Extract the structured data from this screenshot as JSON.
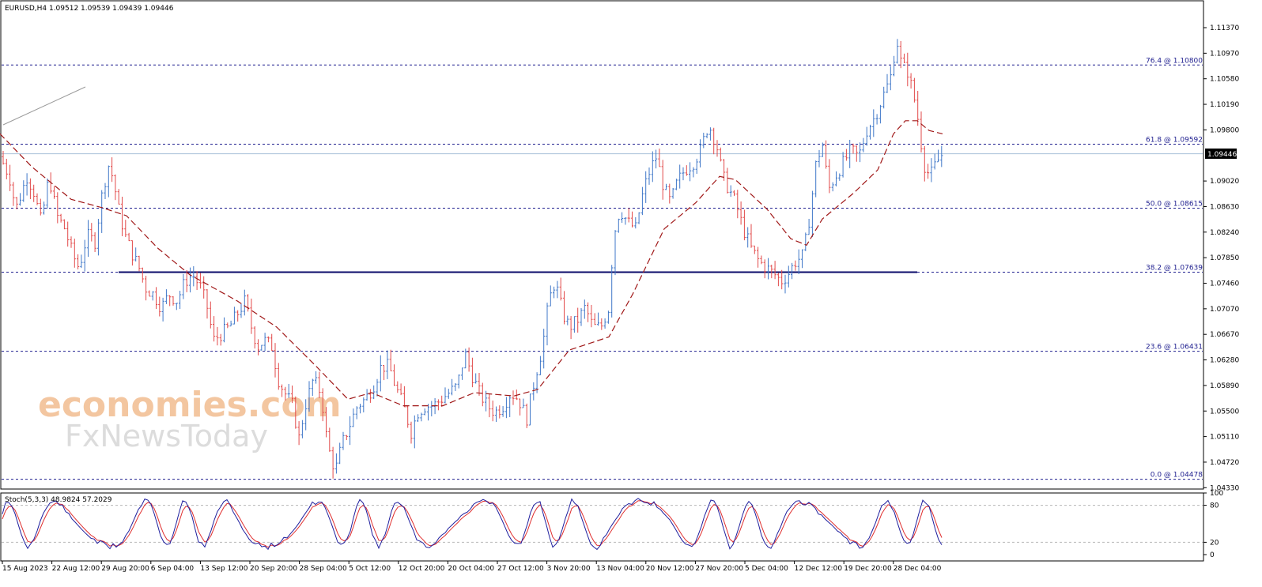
{
  "header": {
    "title": "EURUSD,H4  1.09512 1.09539 1.09439 1.09446"
  },
  "price_label": "1.09446",
  "oscillator": {
    "title": "Stoch(5,3,3) 48.9824 57.2029"
  },
  "watermark": {
    "line1": "economies.com",
    "line2": "FxNewsToday"
  },
  "colors": {
    "bull": "#3f77c8",
    "bear": "#e24a4a",
    "ma": "#a01818",
    "fib": "#1f1f8f",
    "k": "#1f1f9e",
    "d": "#e03030"
  },
  "chart_data": {
    "type": "candlestick",
    "symbol": "EURUSD",
    "timeframe": "H4",
    "y_ticks": [
      "1.11370",
      "1.10970",
      "1.10580",
      "1.10190",
      "1.09800",
      "1.09020",
      "1.08630",
      "1.08240",
      "1.07850",
      "1.07460",
      "1.07070",
      "1.06670",
      "1.06280",
      "1.05890",
      "1.05500",
      "1.05110",
      "1.04720",
      "1.04330"
    ],
    "x_labels": [
      "15 Aug 2023",
      "22 Aug 12:00",
      "29 Aug 20:00",
      "6 Sep 04:00",
      "13 Sep 12:00",
      "20 Sep 20:00",
      "28 Sep 04:00",
      "5 Oct 12:00",
      "12 Oct 20:00",
      "20 Oct 04:00",
      "27 Oct 12:00",
      "3 Nov 20:00",
      "13 Nov 04:00",
      "20 Nov 12:00",
      "27 Nov 20:00",
      "5 Dec 04:00",
      "12 Dec 12:00",
      "19 Dec 20:00",
      "28 Dec 04:00"
    ],
    "ylim": [
      1.0433,
      1.1137
    ],
    "fib_levels": [
      {
        "label": "76.4 @ 1.10800",
        "value": 1.108
      },
      {
        "label": "61.8 @ 1.09592",
        "value": 1.09592
      },
      {
        "label": "50.0 @ 1.08615",
        "value": 1.08615
      },
      {
        "label": "38.2 @ 1.07639",
        "value": 1.07639
      },
      {
        "label": "23.6 @ 1.06431",
        "value": 1.06431
      },
      {
        "label": "0.0 @ 1.04478",
        "value": 1.04478
      }
    ],
    "current_price": 1.09446,
    "close_path": [
      [
        0,
        1.094
      ],
      [
        12,
        1.091
      ],
      [
        20,
        1.086
      ],
      [
        34,
        1.091
      ],
      [
        42,
        1.089
      ],
      [
        52,
        1.084
      ],
      [
        62,
        1.091
      ],
      [
        72,
        1.085
      ],
      [
        82,
        1.083
      ],
      [
        92,
        1.079
      ],
      [
        100,
        1.077
      ],
      [
        110,
        1.082
      ],
      [
        120,
        1.081
      ],
      [
        130,
        1.089
      ],
      [
        138,
        1.093
      ],
      [
        144,
        1.09
      ],
      [
        150,
        1.086
      ],
      [
        158,
        1.082
      ],
      [
        168,
        1.079
      ],
      [
        176,
        1.077
      ],
      [
        184,
        1.074
      ],
      [
        194,
        1.073
      ],
      [
        204,
        1.071
      ],
      [
        214,
        1.073
      ],
      [
        224,
        1.072
      ],
      [
        234,
        1.075
      ],
      [
        244,
        1.076
      ],
      [
        254,
        1.074
      ],
      [
        262,
        1.071
      ],
      [
        270,
        1.066
      ],
      [
        280,
        1.067
      ],
      [
        290,
        1.068
      ],
      [
        300,
        1.07
      ],
      [
        310,
        1.072
      ],
      [
        318,
        1.068
      ],
      [
        326,
        1.065
      ],
      [
        334,
        1.066
      ],
      [
        344,
        1.065
      ],
      [
        352,
        1.06
      ],
      [
        360,
        1.058
      ],
      [
        370,
        1.056
      ],
      [
        378,
        1.051
      ],
      [
        386,
        1.056
      ],
      [
        396,
        1.06
      ],
      [
        406,
        1.058
      ],
      [
        414,
        1.05
      ],
      [
        424,
        1.046
      ],
      [
        432,
        1.05
      ],
      [
        442,
        1.053
      ],
      [
        452,
        1.056
      ],
      [
        462,
        1.057
      ],
      [
        472,
        1.059
      ],
      [
        482,
        1.062
      ],
      [
        492,
        1.062
      ],
      [
        500,
        1.059
      ],
      [
        510,
        1.056
      ],
      [
        520,
        1.052
      ],
      [
        528,
        1.055
      ],
      [
        538,
        1.056
      ],
      [
        548,
        1.056
      ],
      [
        558,
        1.057
      ],
      [
        568,
        1.058
      ],
      [
        578,
        1.059
      ],
      [
        588,
        1.064
      ],
      [
        596,
        1.061
      ],
      [
        606,
        1.058
      ],
      [
        616,
        1.056
      ],
      [
        626,
        1.055
      ],
      [
        636,
        1.056
      ],
      [
        646,
        1.058
      ],
      [
        656,
        1.057
      ],
      [
        666,
        1.054
      ],
      [
        676,
        1.06
      ],
      [
        686,
        1.065
      ],
      [
        694,
        1.072
      ],
      [
        702,
        1.075
      ],
      [
        712,
        1.07
      ],
      [
        720,
        1.068
      ],
      [
        730,
        1.069
      ],
      [
        740,
        1.071
      ],
      [
        750,
        1.068
      ],
      [
        760,
        1.068
      ],
      [
        770,
        1.071
      ],
      [
        776,
        1.082
      ],
      [
        784,
        1.086
      ],
      [
        794,
        1.084
      ],
      [
        804,
        1.083
      ],
      [
        814,
        1.089
      ],
      [
        822,
        1.092
      ],
      [
        830,
        1.094
      ],
      [
        840,
        1.089
      ],
      [
        848,
        1.087
      ],
      [
        856,
        1.09
      ],
      [
        866,
        1.092
      ],
      [
        876,
        1.093
      ],
      [
        886,
        1.095
      ],
      [
        896,
        1.099
      ],
      [
        906,
        1.096
      ],
      [
        914,
        1.091
      ],
      [
        922,
        1.089
      ],
      [
        930,
        1.087
      ],
      [
        940,
        1.083
      ],
      [
        950,
        1.08
      ],
      [
        960,
        1.078
      ],
      [
        970,
        1.077
      ],
      [
        980,
        1.076
      ],
      [
        988,
        1.075
      ],
      [
        996,
        1.076
      ],
      [
        1006,
        1.078
      ],
      [
        1016,
        1.079
      ],
      [
        1024,
        1.085
      ],
      [
        1032,
        1.093
      ],
      [
        1040,
        1.096
      ],
      [
        1048,
        1.089
      ],
      [
        1056,
        1.091
      ],
      [
        1066,
        1.093
      ],
      [
        1076,
        1.095
      ],
      [
        1086,
        1.094
      ],
      [
        1096,
        1.098
      ],
      [
        1106,
        1.1
      ],
      [
        1116,
        1.103
      ],
      [
        1126,
        1.106
      ],
      [
        1134,
        1.112
      ],
      [
        1140,
        1.108
      ],
      [
        1148,
        1.107
      ],
      [
        1156,
        1.103
      ],
      [
        1162,
        1.099
      ],
      [
        1168,
        1.093
      ],
      [
        1176,
        1.091
      ],
      [
        1184,
        1.093
      ],
      [
        1192,
        1.0945
      ]
    ],
    "moving_average": [
      [
        0,
        1.0975
      ],
      [
        40,
        1.0925
      ],
      [
        90,
        1.0875
      ],
      [
        130,
        1.0862
      ],
      [
        160,
        1.085
      ],
      [
        200,
        1.08
      ],
      [
        240,
        1.076
      ],
      [
        300,
        1.072
      ],
      [
        350,
        1.068
      ],
      [
        400,
        1.062
      ],
      [
        440,
        1.057
      ],
      [
        470,
        1.058
      ],
      [
        510,
        1.056
      ],
      [
        560,
        1.056
      ],
      [
        600,
        1.058
      ],
      [
        650,
        1.0575
      ],
      [
        680,
        1.0585
      ],
      [
        720,
        1.0645
      ],
      [
        770,
        1.0665
      ],
      [
        800,
        1.073
      ],
      [
        840,
        1.083
      ],
      [
        880,
        1.087
      ],
      [
        910,
        1.091
      ],
      [
        930,
        1.0905
      ],
      [
        970,
        1.086
      ],
      [
        1000,
        1.0815
      ],
      [
        1020,
        1.0805
      ],
      [
        1040,
        1.0845
      ],
      [
        1080,
        1.0885
      ],
      [
        1110,
        1.092
      ],
      [
        1130,
        1.0975
      ],
      [
        1145,
        1.0995
      ],
      [
        1160,
        1.0995
      ],
      [
        1175,
        1.098
      ],
      [
        1192,
        1.0975
      ]
    ],
    "resistance_segment": {
      "x_start": 150,
      "x_end": 1160,
      "value": 1.07639
    },
    "stochastic": {
      "k": 48.9824,
      "d": 57.2029,
      "levels": [
        80,
        20
      ],
      "y_ticks": [
        "100",
        "80",
        "20",
        "0"
      ]
    }
  }
}
